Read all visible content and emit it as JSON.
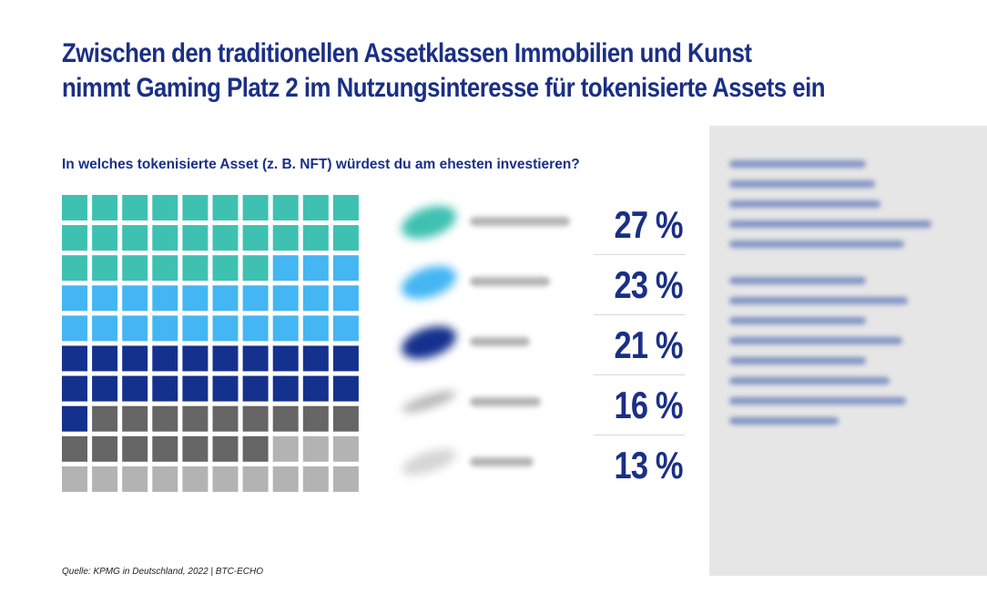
{
  "title_line1": "Zwischen den traditionellen Assetklassen Immobilien und Kunst",
  "title_line2": "nimmt Gaming Platz 2 im Nutzungsinteresse für tokenisierte Assets ein",
  "question": "In welches tokenisierte Asset (z. B. NFT) würdest du am ehesten investieren?",
  "source": "Quelle: KPMG in Deutschland, 2022 | BTC-ECHO",
  "chart_data": {
    "type": "waffle",
    "grid": {
      "rows": 10,
      "cols": 10
    },
    "values": [
      27,
      23,
      21,
      16,
      13
    ],
    "labels": [
      "27 %",
      "23 %",
      "21 %",
      "16 %",
      "13 %"
    ],
    "colors": [
      "#3ec1b1",
      "#44b6f3",
      "#15318e",
      "#666666",
      "#b3b3b3"
    ]
  }
}
